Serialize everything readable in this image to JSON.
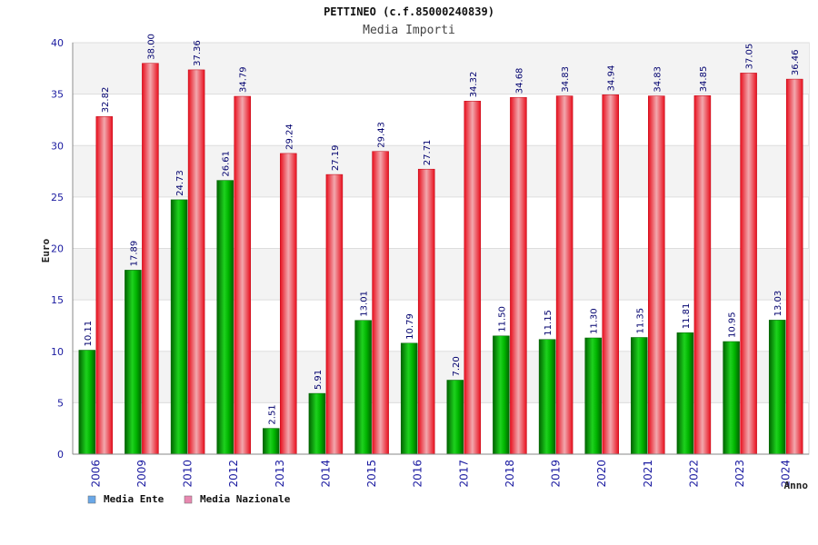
{
  "chart_data": {
    "type": "bar",
    "title": "PETTINEO (c.f.85000240839)",
    "subtitle": "Media Importi",
    "xlabel": "Anno",
    "ylabel": "Euro",
    "ylim": [
      0,
      40
    ],
    "yticks": [
      "0",
      "5",
      "10",
      "15",
      "20",
      "25",
      "30",
      "35",
      "40"
    ],
    "grid": true,
    "legend_position": "bottom-left",
    "categories": [
      "2006",
      "2009",
      "2010",
      "2012",
      "2013",
      "2014",
      "2015",
      "2016",
      "2017",
      "2018",
      "2019",
      "2020",
      "2021",
      "2022",
      "2023",
      "2024"
    ],
    "series": [
      {
        "name": "Media Ente",
        "color": "#00b000",
        "legend_color": "#6aa8e8",
        "values": [
          10.11,
          17.89,
          24.73,
          26.61,
          2.51,
          5.91,
          13.01,
          10.79,
          7.2,
          11.5,
          11.15,
          11.3,
          11.35,
          11.81,
          10.95,
          13.03
        ],
        "labels": [
          "10.11",
          "17.89",
          "24.73",
          "26.61",
          "2.51",
          "5.91",
          "13.01",
          "10.79",
          "7.20",
          "11.50",
          "11.15",
          "11.30",
          "11.35",
          "11.81",
          "10.95",
          "13.03"
        ]
      },
      {
        "name": "Media Nazionale",
        "color": "#e8101e",
        "legend_color": "#e888b0",
        "values": [
          32.82,
          38.0,
          37.36,
          34.79,
          29.24,
          27.19,
          29.43,
          27.71,
          34.32,
          34.68,
          34.83,
          34.94,
          34.83,
          34.85,
          37.05,
          36.46
        ],
        "labels": [
          "32.82",
          "38.00",
          "37.36",
          "34.79",
          "29.24",
          "27.19",
          "29.43",
          "27.71",
          "34.32",
          "34.68",
          "34.83",
          "34.94",
          "34.83",
          "34.85",
          "37.05",
          "36.46"
        ]
      }
    ]
  }
}
